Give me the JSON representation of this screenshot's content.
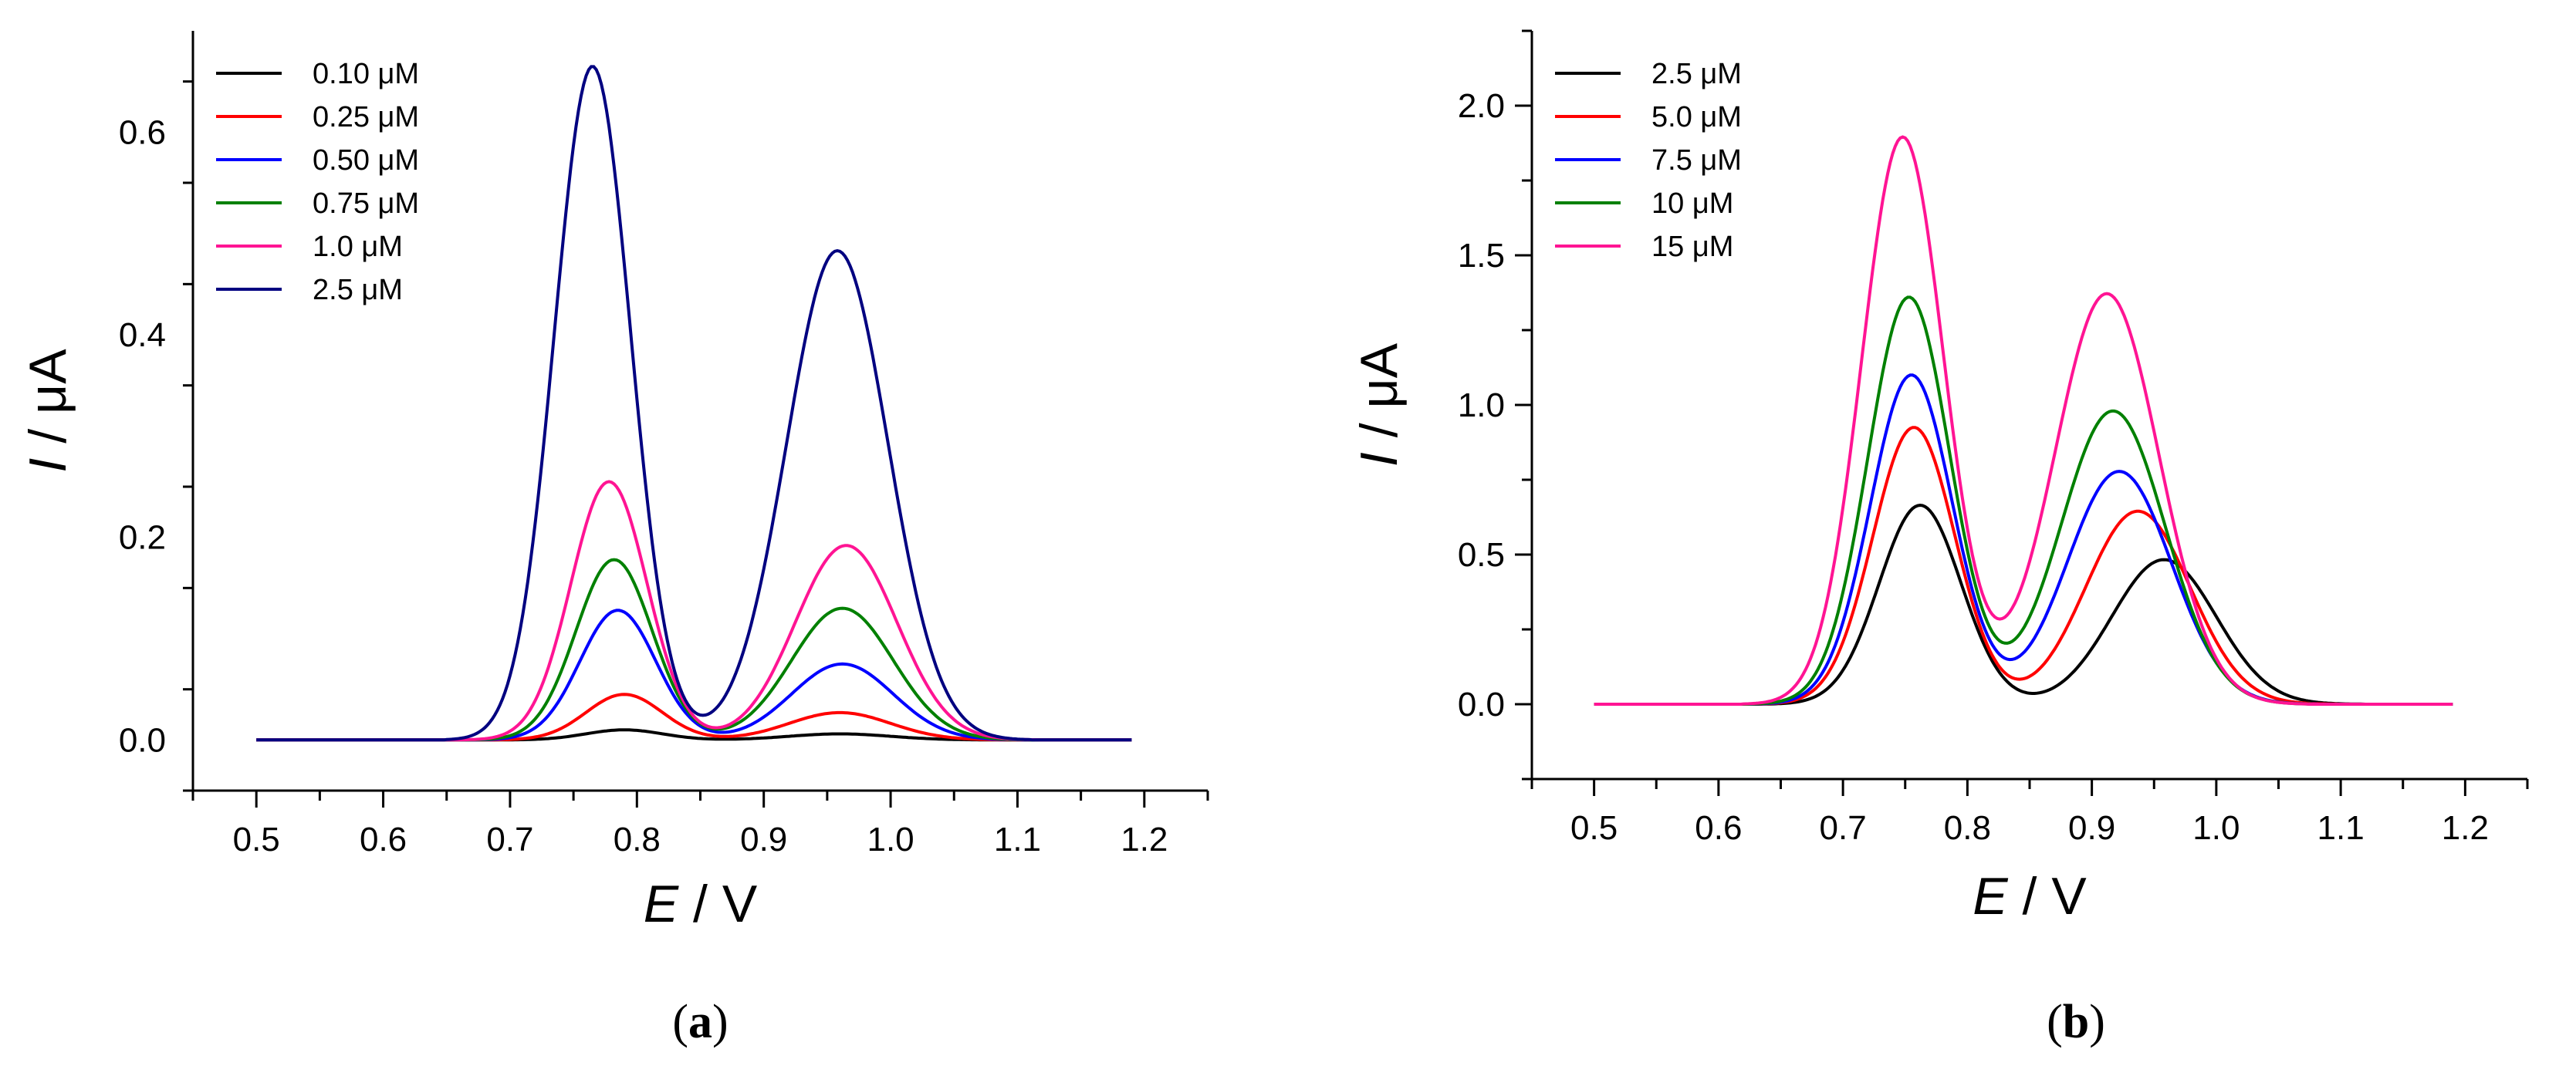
{
  "chart_data": [
    {
      "type": "line",
      "panel_label": "a",
      "xlabel": "E",
      "xlabel_unit": " / V",
      "ylabel": "I",
      "ylabel_unit": " / μA",
      "xlim": [
        0.45,
        1.25
      ],
      "ylim": [
        -0.05,
        0.7
      ],
      "xticks": [
        "0.5",
        "0.6",
        "0.7",
        "0.8",
        "0.9",
        "1.0",
        "1.1",
        "1.2"
      ],
      "xtick_values": [
        0.5,
        0.6,
        0.7,
        0.8,
        0.9,
        1.0,
        1.1,
        1.2
      ],
      "yticks": [
        "0.0",
        "0.2",
        "0.4",
        "0.6"
      ],
      "ytick_values": [
        0.0,
        0.2,
        0.4,
        0.6
      ],
      "legend_position": "top-left",
      "series": [
        {
          "name": "0.10 μM",
          "color": "#000000",
          "peak1": {
            "x": 0.79,
            "y": 0.01
          },
          "peak2": {
            "x": 0.96,
            "y": 0.006
          }
        },
        {
          "name": "0.25 μM",
          "color": "#ff0000",
          "peak1": {
            "x": 0.79,
            "y": 0.045
          },
          "peak2": {
            "x": 0.96,
            "y": 0.027
          }
        },
        {
          "name": "0.50 μM",
          "color": "#0000ff",
          "peak1": {
            "x": 0.785,
            "y": 0.128
          },
          "peak2": {
            "x": 0.962,
            "y": 0.075
          }
        },
        {
          "name": "0.75 μM",
          "color": "#008000",
          "peak1": {
            "x": 0.782,
            "y": 0.178
          },
          "peak2": {
            "x": 0.962,
            "y": 0.13
          }
        },
        {
          "name": "1.0 μM",
          "color": "#ff1493",
          "peak1": {
            "x": 0.778,
            "y": 0.255
          },
          "peak2": {
            "x": 0.965,
            "y": 0.192
          }
        },
        {
          "name": "2.5 μM",
          "color": "#000080",
          "peak1": {
            "x": 0.765,
            "y": 0.665
          },
          "peak2": {
            "x": 0.958,
            "y": 0.483
          }
        }
      ]
    },
    {
      "type": "line",
      "panel_label": "b",
      "xlabel": "E",
      "xlabel_unit": " / V",
      "ylabel": "I",
      "ylabel_unit": " / μA",
      "xlim": [
        0.45,
        1.25
      ],
      "ylim": [
        -0.25,
        2.25
      ],
      "xticks": [
        "0.5",
        "0.6",
        "0.7",
        "0.8",
        "0.9",
        "1.0",
        "1.1",
        "1.2"
      ],
      "xtick_values": [
        0.5,
        0.6,
        0.7,
        0.8,
        0.9,
        1.0,
        1.1,
        1.2
      ],
      "yticks": [
        "0.0",
        "0.5",
        "1.0",
        "1.5",
        "2.0"
      ],
      "ytick_values": [
        0.0,
        0.5,
        1.0,
        1.5,
        2.0
      ],
      "legend_position": "top-left",
      "series": [
        {
          "name": "2.5 μM",
          "color": "#000000",
          "peak1": {
            "x": 0.762,
            "y": 0.665
          },
          "peak2": {
            "x": 0.958,
            "y": 0.483
          }
        },
        {
          "name": "5.0 μM",
          "color": "#ff0000",
          "peak1": {
            "x": 0.757,
            "y": 0.925
          },
          "peak2": {
            "x": 0.937,
            "y": 0.645
          }
        },
        {
          "name": "7.5 μM",
          "color": "#0000ff",
          "peak1": {
            "x": 0.755,
            "y": 1.1
          },
          "peak2": {
            "x": 0.922,
            "y": 0.778
          }
        },
        {
          "name": "10 μM",
          "color": "#008000",
          "peak1": {
            "x": 0.753,
            "y": 1.36
          },
          "peak2": {
            "x": 0.917,
            "y": 0.98
          }
        },
        {
          "name": "15 μM",
          "color": "#ff1493",
          "peak1": {
            "x": 0.748,
            "y": 1.895
          },
          "peak2": {
            "x": 0.912,
            "y": 1.372
          }
        }
      ]
    }
  ]
}
